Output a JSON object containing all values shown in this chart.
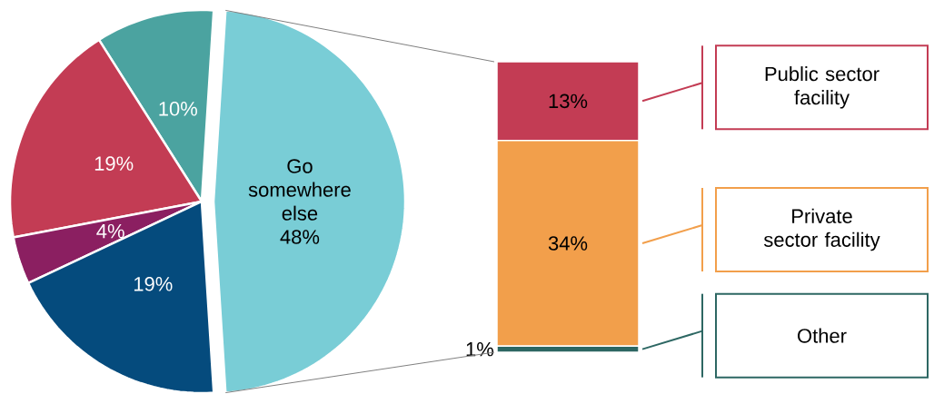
{
  "chart_data": [
    {
      "type": "pie",
      "categories": [
        "Go somewhere else",
        null,
        null,
        null,
        null
      ],
      "values": [
        48,
        10,
        19,
        4,
        19
      ],
      "colors": [
        "#79cdd6",
        "#4ba3a0",
        "#c33c54",
        "#8b1f61",
        "#054b7d"
      ],
      "value_labels": [
        "48%",
        "10%",
        "19%",
        "4%",
        "19%"
      ]
    },
    {
      "type": "bar",
      "stacked": true,
      "categories": [
        null
      ],
      "tick_labels": false,
      "series": [
        {
          "name": "Other",
          "color": "#2d6763",
          "values": [
            1
          ],
          "value_labels": [
            "1%"
          ]
        },
        {
          "name": "Private sector facility",
          "color": "#f29f4b",
          "values": [
            34
          ],
          "value_labels": [
            "34%"
          ]
        },
        {
          "name": "Public sector facility",
          "color": "#c33c54",
          "values": [
            13
          ],
          "value_labels": [
            "13%"
          ]
        }
      ]
    }
  ]
}
